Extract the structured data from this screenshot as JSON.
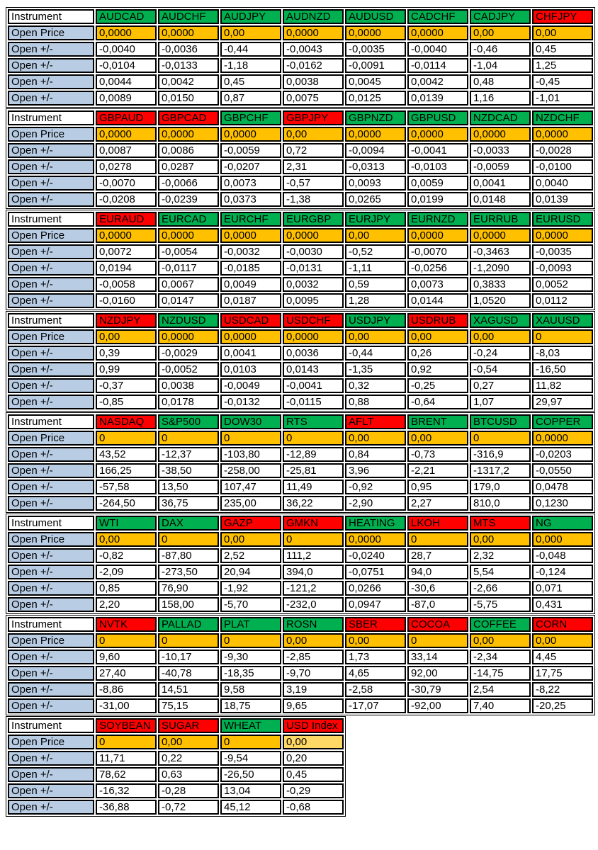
{
  "labels": {
    "instrument": "Instrument",
    "open_price": "Open Price",
    "open_change": "Open +/-"
  },
  "colors": {
    "green": "#00B050",
    "red": "#FF0000",
    "orange": "#FFC000",
    "light_orange": "#FFD966",
    "label_blue": "#B8CCE4",
    "border": "#000000"
  },
  "blocks": [
    {
      "instruments": [
        {
          "name": "AUDCAD",
          "color": "green"
        },
        {
          "name": "AUDCHF",
          "color": "green"
        },
        {
          "name": "AUDJPY",
          "color": "green"
        },
        {
          "name": "AUDNZD",
          "color": "green"
        },
        {
          "name": "AUDUSD",
          "color": "green"
        },
        {
          "name": "CADCHF",
          "color": "green"
        },
        {
          "name": "CADJPY",
          "color": "green"
        },
        {
          "name": "CHFJPY",
          "color": "red"
        }
      ],
      "open_prices": [
        "0,0000",
        "0,0000",
        "0,00",
        "0,0000",
        "0,0000",
        "0,0000",
        "0,00",
        "0,00"
      ],
      "open_price_styles": [
        "orange",
        "orange",
        "orange",
        "orange",
        "orange",
        "orange",
        "orange",
        "orange"
      ],
      "rows": [
        [
          "-0,0040",
          "-0,0036",
          "-0,44",
          "-0,0043",
          "-0,0035",
          "-0,0040",
          "-0,46",
          "0,45"
        ],
        [
          "-0,0104",
          "-0,0133",
          "-1,18",
          "-0,0162",
          "-0,0091",
          "-0,0114",
          "-1,04",
          "1,25"
        ],
        [
          "0,0044",
          "0,0042",
          "0,45",
          "0,0038",
          "0,0045",
          "0,0042",
          "0,48",
          "-0,45"
        ],
        [
          "0,0089",
          "0,0150",
          "0,87",
          "0,0075",
          "0,0125",
          "0,0139",
          "1,16",
          "-1,01"
        ]
      ]
    },
    {
      "instruments": [
        {
          "name": "GBPAUD",
          "color": "red"
        },
        {
          "name": "GBPCAD",
          "color": "red"
        },
        {
          "name": "GBPCHF",
          "color": "green"
        },
        {
          "name": "GBPJPY",
          "color": "red"
        },
        {
          "name": "GBPNZD",
          "color": "green"
        },
        {
          "name": "GBPUSD",
          "color": "green"
        },
        {
          "name": "NZDCAD",
          "color": "green"
        },
        {
          "name": "NZDCHF",
          "color": "green"
        }
      ],
      "open_prices": [
        "0,0000",
        "0,0000",
        "0,0000",
        "0,00",
        "0,0000",
        "0,0000",
        "0,0000",
        "0,0000"
      ],
      "open_price_styles": [
        "orange",
        "orange",
        "orange",
        "orange",
        "orange",
        "orange",
        "orange",
        "orange"
      ],
      "rows": [
        [
          "0,0087",
          "0,0086",
          "-0,0059",
          "0,72",
          "-0,0094",
          "-0,0041",
          "-0,0033",
          "-0,0028"
        ],
        [
          "0,0278",
          "0,0287",
          "-0,0207",
          "2,31",
          "-0,0313",
          "-0,0103",
          "-0,0059",
          "-0,0100"
        ],
        [
          "-0,0070",
          "-0,0066",
          "0,0073",
          "-0,57",
          "0,0093",
          "0,0059",
          "0,0041",
          "0,0040"
        ],
        [
          "-0,0208",
          "-0,0239",
          "0,0373",
          "-1,38",
          "0,0265",
          "0,0199",
          "0,0148",
          "0,0139"
        ]
      ]
    },
    {
      "instruments": [
        {
          "name": "EURAUD",
          "color": "red"
        },
        {
          "name": "EURCAD",
          "color": "green"
        },
        {
          "name": "EURCHF",
          "color": "green"
        },
        {
          "name": "EURGBP",
          "color": "green"
        },
        {
          "name": "EURJPY",
          "color": "green"
        },
        {
          "name": "EURNZD",
          "color": "green"
        },
        {
          "name": "EURRUB",
          "color": "green"
        },
        {
          "name": "EURUSD",
          "color": "green"
        }
      ],
      "open_prices": [
        "0,0000",
        "0,0000",
        "0,0000",
        "0,0000",
        "0,00",
        "0,0000",
        "0,0000",
        "0,0000"
      ],
      "open_price_styles": [
        "orange",
        "orange",
        "orange",
        "orange",
        "orange",
        "orange",
        "orange",
        "orange"
      ],
      "rows": [
        [
          "0,0072",
          "-0,0054",
          "-0,0032",
          "-0,0030",
          "-0,52",
          "-0,0070",
          "-0,3463",
          "-0,0035"
        ],
        [
          "0,0194",
          "-0,0117",
          "-0,0185",
          "-0,0131",
          "-1,11",
          "-0,0256",
          "-1,2090",
          "-0,0093"
        ],
        [
          "-0,0058",
          "0,0067",
          "0,0049",
          "0,0032",
          "0,59",
          "0,0073",
          "0,3833",
          "0,0052"
        ],
        [
          "-0,0160",
          "0,0147",
          "0,0187",
          "0,0095",
          "1,28",
          "0,0144",
          "1,0520",
          "0,0112"
        ]
      ]
    },
    {
      "instruments": [
        {
          "name": "NZDJPY",
          "color": "red"
        },
        {
          "name": "NZDUSD",
          "color": "green"
        },
        {
          "name": "USDCAD",
          "color": "red"
        },
        {
          "name": "USDCHF",
          "color": "red"
        },
        {
          "name": "USDJPY",
          "color": "green"
        },
        {
          "name": "USDRUB",
          "color": "red"
        },
        {
          "name": "XAGUSD",
          "color": "green"
        },
        {
          "name": "XAUUSD",
          "color": "green"
        }
      ],
      "open_prices": [
        "0,00",
        "0,0000",
        "0,0000",
        "0,0000",
        "0,00",
        "0,00",
        "0,00",
        "0"
      ],
      "open_price_styles": [
        "orange",
        "orange",
        "orange",
        "orange",
        "orange",
        "orange",
        "orange",
        "orange"
      ],
      "rows": [
        [
          "0,39",
          "-0,0029",
          "0,0041",
          "0,0036",
          "-0,44",
          "0,26",
          "-0,24",
          "-8,03"
        ],
        [
          "0,99",
          "-0,0052",
          "0,0103",
          "0,0143",
          "-1,35",
          "0,92",
          "-0,54",
          "-16,50"
        ],
        [
          "-0,37",
          "0,0038",
          "-0,0049",
          "-0,0041",
          "0,32",
          "-0,25",
          "0,27",
          "11,82"
        ],
        [
          "-0,85",
          "0,0178",
          "-0,0132",
          "-0,0115",
          "0,88",
          "-0,64",
          "1,07",
          "29,97"
        ]
      ]
    },
    {
      "instruments": [
        {
          "name": "NASDAQ",
          "color": "red"
        },
        {
          "name": "S&P500",
          "color": "green"
        },
        {
          "name": "DOW30",
          "color": "green"
        },
        {
          "name": "RTS",
          "color": "green"
        },
        {
          "name": "AFLT",
          "color": "red"
        },
        {
          "name": "BRENT",
          "color": "green"
        },
        {
          "name": "BTCUSD",
          "color": "green"
        },
        {
          "name": "COPPER",
          "color": "green"
        }
      ],
      "open_prices": [
        "0",
        "0",
        "0",
        "0",
        "0,00",
        "0,00",
        "0",
        "0,0000"
      ],
      "open_price_styles": [
        "orange",
        "orange",
        "orange",
        "orange",
        "orange",
        "orange",
        "orange",
        "orange"
      ],
      "rows": [
        [
          "43,52",
          "-12,37",
          "-103,80",
          "-12,89",
          "0,84",
          "-0,73",
          "-316,9",
          "-0,0203"
        ],
        [
          "166,25",
          "-38,50",
          "-258,00",
          "-25,81",
          "3,96",
          "-2,21",
          "-1317,2",
          "-0,0550"
        ],
        [
          "-57,58",
          "13,50",
          "107,47",
          "11,49",
          "-0,92",
          "0,95",
          "179,0",
          "0,0478"
        ],
        [
          "-264,50",
          "36,75",
          "235,00",
          "36,22",
          "-2,90",
          "2,27",
          "810,0",
          "0,1230"
        ]
      ]
    },
    {
      "instruments": [
        {
          "name": "WTI",
          "color": "green"
        },
        {
          "name": "DAX",
          "color": "green"
        },
        {
          "name": "GAZP",
          "color": "red"
        },
        {
          "name": "GMKN",
          "color": "red"
        },
        {
          "name": "HEATING",
          "color": "green"
        },
        {
          "name": "LKOH",
          "color": "red"
        },
        {
          "name": "MTS",
          "color": "red"
        },
        {
          "name": "NG",
          "color": "green"
        }
      ],
      "open_prices": [
        "0,00",
        "0",
        "0,00",
        "0",
        "0,0000",
        "0",
        "0,00",
        "0,000"
      ],
      "open_price_styles": [
        "orange",
        "orange",
        "orange",
        "orange",
        "orange",
        "orange",
        "orange",
        "orange"
      ],
      "rows": [
        [
          "-0,82",
          "-87,80",
          "2,52",
          "111,2",
          "-0,0240",
          "28,7",
          "2,32",
          "-0,048"
        ],
        [
          "-2,09",
          "-273,50",
          "20,94",
          "394,0",
          "-0,0751",
          "94,0",
          "5,54",
          "-0,124"
        ],
        [
          "0,85",
          "76,90",
          "-1,92",
          "-121,2",
          "0,0266",
          "-30,6",
          "-2,66",
          "0,071"
        ],
        [
          "2,20",
          "158,00",
          "-5,70",
          "-232,0",
          "0,0947",
          "-87,0",
          "-5,75",
          "0,431"
        ]
      ]
    },
    {
      "instruments": [
        {
          "name": "NVTK",
          "color": "red"
        },
        {
          "name": "PALLAD",
          "color": "green"
        },
        {
          "name": "PLAT",
          "color": "green"
        },
        {
          "name": "ROSN",
          "color": "green"
        },
        {
          "name": "SBER",
          "color": "red"
        },
        {
          "name": "COCOA",
          "color": "red"
        },
        {
          "name": "COFFEE",
          "color": "green"
        },
        {
          "name": "CORN",
          "color": "red"
        }
      ],
      "open_prices": [
        "0",
        "0",
        "0",
        "0,00",
        "0,00",
        "0",
        "0,00",
        "0,00"
      ],
      "open_price_styles": [
        "orange",
        "orange",
        "orange",
        "orange",
        "orange",
        "orange",
        "orange",
        "orange"
      ],
      "rows": [
        [
          "9,60",
          "-10,17",
          "-9,30",
          "-2,85",
          "1,73",
          "33,14",
          "-2,34",
          "4,45"
        ],
        [
          "27,40",
          "-40,78",
          "-18,35",
          "-9,70",
          "4,65",
          "92,00",
          "-14,75",
          "17,75"
        ],
        [
          "-8,86",
          "14,51",
          "9,58",
          "3,19",
          "-2,58",
          "-30,79",
          "2,54",
          "-8,22"
        ],
        [
          "-31,00",
          "75,15",
          "18,75",
          "9,65",
          "-17,07",
          "-92,00",
          "7,40",
          "-20,25"
        ]
      ]
    },
    {
      "instruments": [
        {
          "name": "SOYBEAN",
          "color": "red"
        },
        {
          "name": "SUGAR",
          "color": "red"
        },
        {
          "name": "WHEAT",
          "color": "green"
        },
        {
          "name": "USD Index",
          "color": "red"
        }
      ],
      "open_prices": [
        "0",
        "0,00",
        "0",
        "0,00"
      ],
      "open_price_styles": [
        "orange",
        "orange",
        "orange",
        "light-orange"
      ],
      "rows": [
        [
          "11,71",
          "0,22",
          "-9,54",
          "0,20"
        ],
        [
          "78,62",
          "0,63",
          "-26,50",
          "0,45"
        ],
        [
          "-16,32",
          "-0,28",
          "13,04",
          "-0,29"
        ],
        [
          "-36,88",
          "-0,72",
          "45,12",
          "-0,68"
        ]
      ]
    }
  ]
}
